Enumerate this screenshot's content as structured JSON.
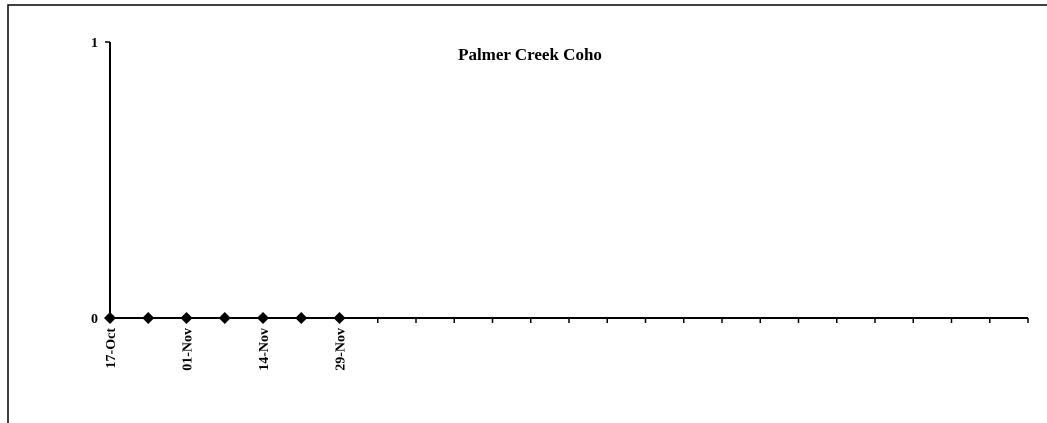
{
  "chart_data": {
    "type": "line",
    "title": "Palmer Creek Coho",
    "categories": [
      "17-Oct",
      null,
      "01-Nov",
      null,
      "14-Nov",
      null,
      "29-Nov",
      null,
      null,
      null,
      null,
      null,
      null,
      null,
      null,
      null,
      null,
      null,
      null,
      null,
      null,
      null,
      null,
      null,
      null
    ],
    "series": [
      {
        "name": null,
        "color": "#000000",
        "values": [
          0,
          0,
          0,
          0,
          0,
          0,
          0,
          null,
          null,
          null,
          null,
          null,
          null,
          null,
          null,
          null,
          null,
          null,
          null,
          null,
          null,
          null,
          null,
          null,
          null
        ]
      }
    ],
    "ylim": [
      0,
      1
    ],
    "yticks": [
      0,
      1
    ],
    "grid": false
  }
}
